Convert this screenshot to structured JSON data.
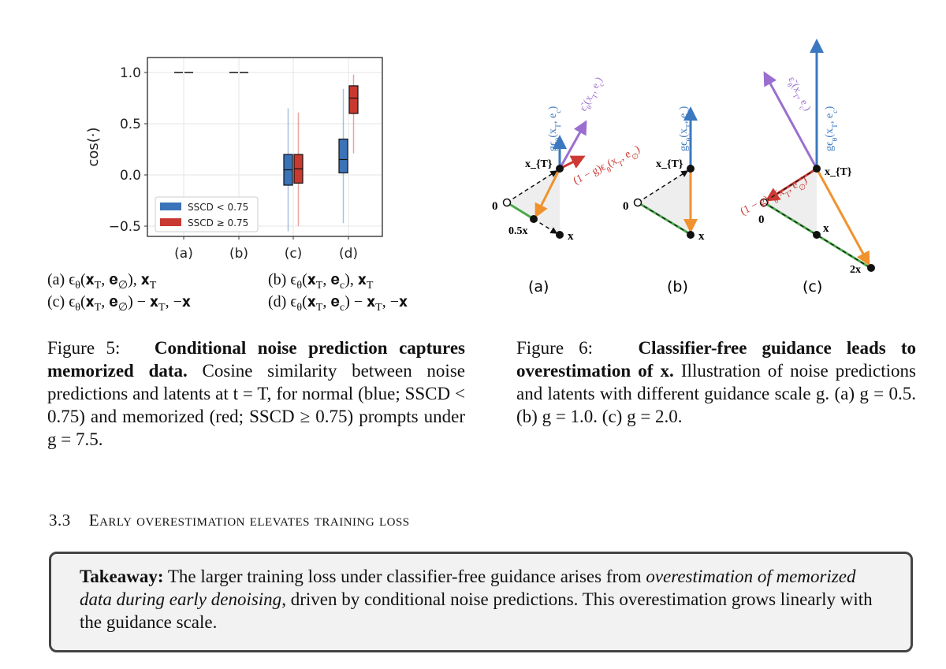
{
  "figure5": {
    "chart_data": {
      "type": "box",
      "categories": [
        "(a)",
        "(b)",
        "(c)",
        "(d)"
      ],
      "ylabel": "cos(·)",
      "ylim": [
        -0.6,
        1.1
      ],
      "yticks": [
        "1.0",
        "0.5",
        "0.0",
        "−0.5"
      ],
      "ytick_values": [
        1.0,
        0.5,
        0.0,
        -0.5
      ],
      "grid": true,
      "legend_position": "lower-left",
      "series": [
        {
          "name": "SSCD < 0.75",
          "color": "#3a73b8",
          "boxes": [
            {
              "min": 1.0,
              "q1": 1.0,
              "median": 1.0,
              "q3": 1.0,
              "max": 1.0
            },
            {
              "min": 1.0,
              "q1": 1.0,
              "median": 1.0,
              "q3": 1.0,
              "max": 1.0
            },
            {
              "min": -0.55,
              "q1": -0.1,
              "median": 0.05,
              "q3": 0.2,
              "max": 0.65
            },
            {
              "min": -0.47,
              "q1": 0.02,
              "median": 0.15,
              "q3": 0.35,
              "max": 0.84
            }
          ]
        },
        {
          "name": "SSCD ≥ 0.75",
          "color": "#c8392f",
          "boxes": [
            {
              "min": 1.0,
              "q1": 1.0,
              "median": 1.0,
              "q3": 1.0,
              "max": 1.0
            },
            {
              "min": 1.0,
              "q1": 1.0,
              "median": 1.0,
              "q3": 1.0,
              "max": 1.0
            },
            {
              "min": -0.5,
              "q1": -0.08,
              "median": 0.06,
              "q3": 0.2,
              "max": 0.61
            },
            {
              "min": 0.21,
              "q1": 0.6,
              "median": 0.75,
              "q3": 0.87,
              "max": 0.98
            }
          ]
        }
      ]
    },
    "subcaptions": [
      "(a) ϵ_{θ}(𝐱_{T}, 𝐞_{∅}), 𝐱_{T}",
      "(b) ϵ_{θ}(𝐱_{T}, 𝐞_{c}), 𝐱_{T}",
      "(c) ϵ_{θ}(𝐱_{T}, 𝐞_{∅}) − 𝐱_{T}, −𝐱",
      "(d) ϵ_{θ}(𝐱_{T}, 𝐞_{c}) − 𝐱_{T}, −𝐱"
    ],
    "caption": {
      "label": "Figure 5:",
      "bold": "Conditional noise prediction captures memorized data.",
      "text": "Cosine similarity between noise predictions and latents at t = T, for normal (blue; SSCD < 0.75) and memorized (red; SSCD ≥ 0.75) prompts under g = 7.5."
    }
  },
  "figure6": {
    "colors": {
      "blue": "#3a78c0",
      "purple": "#9a6fcf",
      "red": "#cc3a33",
      "orange": "#f0922e",
      "green": "#4aa84a"
    },
    "panels": [
      {
        "label": "(a)",
        "zero": "0",
        "xT": "x_{T}",
        "mid": "0.5x",
        "x": "x",
        "blue": "gϵ_{θ}(x_{T}, e_{c})",
        "purple": "ε̃_{θ}(x_{T}, e_{c})",
        "red": "(1 − g)ϵ_{θ}(x_{T}, e_{∅})"
      },
      {
        "label": "(b)",
        "zero": "0",
        "xT": "x_{T}",
        "x": "x",
        "blue": "gϵ_{θ}(x_{T}, e_{c})"
      },
      {
        "label": "(c)",
        "zero": "0",
        "xT": "x_{T}",
        "x": "x",
        "end": "2x",
        "blue": "gϵ_{θ}(x_{T}, e_{c})",
        "purple": "ε̃_{θ}(x_{T}, e_{c})",
        "red": "(1 − g)ϵ_{θ}(x_{T}, e_{∅})"
      }
    ],
    "caption": {
      "label": "Figure 6:",
      "bold": "Classifier-free guidance leads to overestimation of x.",
      "text": "Illustration of noise predictions and latents with different guidance scale g. (a) g = 0.5. (b) g = 1.0. (c) g = 2.0."
    }
  },
  "section": {
    "number": "3.3",
    "title": "Early overestimation elevates training loss"
  },
  "takeaway": {
    "label": "Takeaway:",
    "text1": "The larger training loss under classifier-free guidance arises from",
    "emph": "overestimation of memorized data during early denoising",
    "text2": ", driven by conditional noise predictions.  This overestimation grows linearly with the guidance scale."
  }
}
